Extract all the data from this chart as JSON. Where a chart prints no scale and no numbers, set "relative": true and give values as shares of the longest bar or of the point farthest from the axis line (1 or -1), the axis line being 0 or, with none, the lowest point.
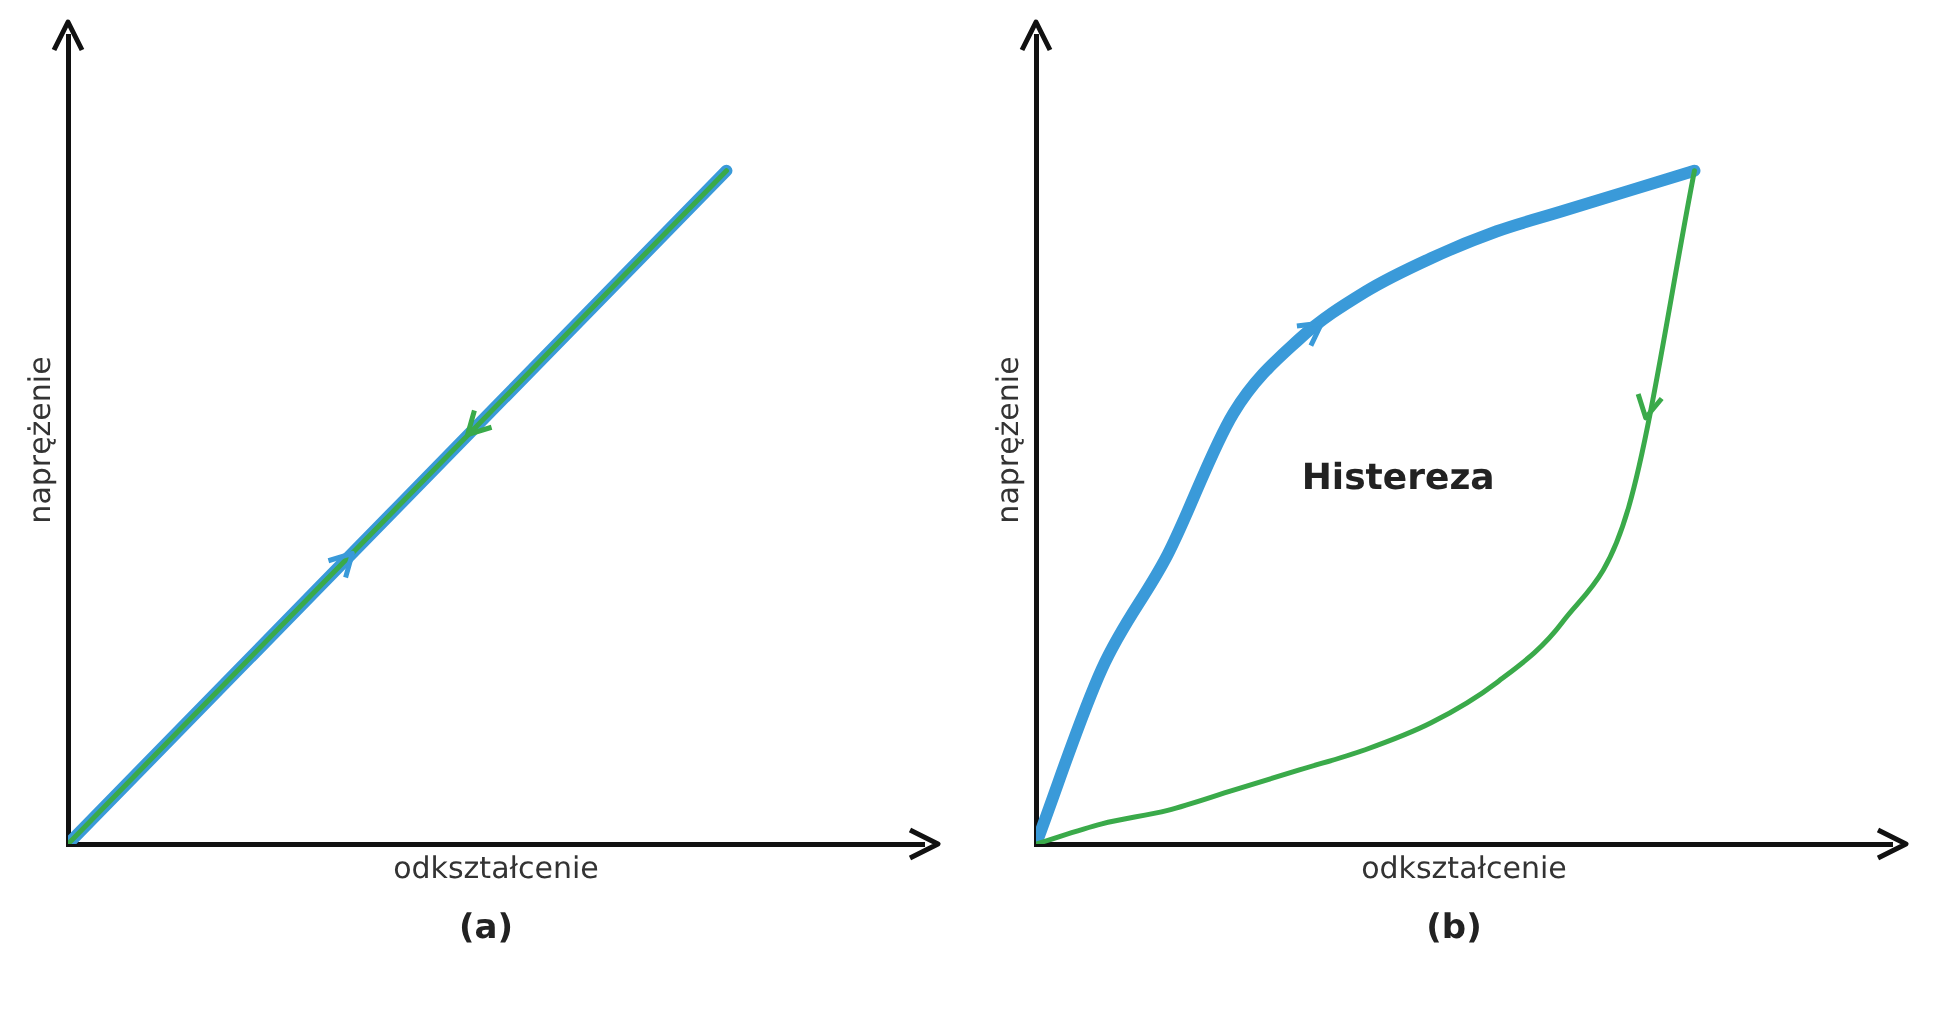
{
  "chart_data": [
    {
      "type": "line",
      "relative": true,
      "xlabel": "odkształcenie",
      "ylabel": "naprężenie",
      "categories": [
        null,
        null,
        null,
        null,
        null
      ],
      "legend": false,
      "marker": "none",
      "line_style": "solid",
      "series": [
        {
          "color": "#3a9ad9",
          "values": [
            0,
            0.25,
            0.5,
            0.75,
            1
          ]
        },
        {
          "color": "#3aaa4a",
          "values": [
            0,
            0.25,
            0.5,
            0.75,
            1
          ]
        }
      ],
      "annotations": [
        "(a)"
      ]
    },
    {
      "type": "line",
      "relative": true,
      "xlabel": "odkształcenie",
      "ylabel": "naprężenie",
      "categories": [
        null,
        null,
        null,
        null,
        null,
        null,
        null,
        null,
        null,
        null,
        null
      ],
      "legend": false,
      "marker": "none",
      "line_style": "solid",
      "series": [
        {
          "color": "#3a9ad9",
          "values": [
            0,
            0.26,
            0.43,
            0.64,
            0.75,
            0.82,
            0.87,
            0.91,
            0.94,
            0.97,
            1
          ]
        },
        {
          "color": "#3aaa4a",
          "values": [
            0,
            0.03,
            0.05,
            0.08,
            0.11,
            0.14,
            0.18,
            0.24,
            0.33,
            0.5,
            1
          ]
        }
      ],
      "annotations": [
        "Histereza",
        "(b)"
      ]
    }
  ]
}
